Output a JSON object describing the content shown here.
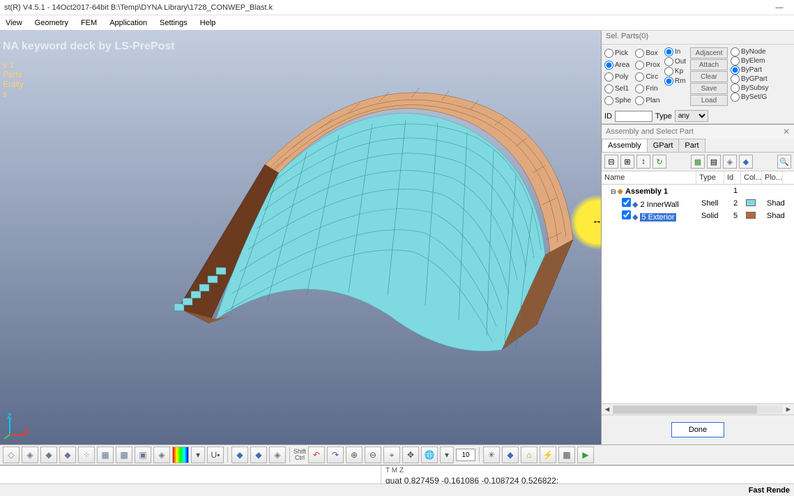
{
  "title": "st(R) V4.5.1 - 14Oct2017-64bit B:\\Temp\\DYNA Library\\1728_CONWEP_Blast.k",
  "menubar": [
    "View",
    "Geometry",
    "FEM",
    "Application",
    "Settings",
    "Help"
  ],
  "viewport": {
    "banner": "NA keyword deck by LS-PrePost",
    "tree": [
      "y 1",
      "Parts",
      "Entity",
      "s"
    ],
    "axis": {
      "z": "Z",
      "x": "X"
    },
    "bg_top": "#c2cde0",
    "bg_bot": "#5c6b8a",
    "mesh": {
      "outer_color": "#e0a97d",
      "outer_edge": "#8a5a38",
      "inner_color": "#7fd9e0",
      "inner_edge": "#2e8a94",
      "side_color": "#6b3a1f",
      "highlight_pos": [
        818,
        236
      ]
    }
  },
  "selparts": {
    "header": "Sel. Parts(0)",
    "col1": [
      [
        "Pick",
        false
      ],
      [
        "Area",
        true
      ],
      [
        "Poly",
        false
      ],
      [
        "Sel1",
        false
      ],
      [
        "Sphe",
        false
      ]
    ],
    "col2": [
      [
        "Box",
        false
      ],
      [
        "Prox",
        false
      ],
      [
        "Circ",
        false
      ],
      [
        "Frin",
        false
      ],
      [
        "Plan",
        false
      ]
    ],
    "col3": [
      [
        "In",
        true
      ],
      [
        "Out",
        false
      ],
      [
        "Kp",
        false
      ],
      [
        "Rm",
        true
      ]
    ],
    "buttons": [
      "Adjacent",
      "Attach",
      "Clear",
      "Save",
      "Load"
    ],
    "bycol": [
      [
        "ByNode",
        false
      ],
      [
        "ByElem",
        false
      ],
      [
        "ByPart",
        true
      ],
      [
        "ByGPart",
        false
      ],
      [
        "BySubsy",
        false
      ],
      [
        "BySet/G",
        false
      ]
    ],
    "id_label": "ID",
    "id_value": "",
    "type_label": "Type",
    "type_value": "any"
  },
  "asm": {
    "title": "Assembly and Select Part",
    "tabs": [
      "Assembly",
      "GPart",
      "Part"
    ],
    "active_tab": 0,
    "columns": [
      [
        "Name",
        136
      ],
      [
        "Type",
        40
      ],
      [
        "Id",
        24
      ],
      [
        "Col...",
        30
      ],
      [
        "Plo...",
        30
      ]
    ],
    "rows": [
      {
        "indent": 0,
        "expander": "⊟",
        "icon": "assembly",
        "name": "Assembly 1",
        "bold": true,
        "type": "",
        "id": "1",
        "color": null,
        "plot": ""
      },
      {
        "indent": 1,
        "check": true,
        "icon": "part",
        "name": "2 InnerWall",
        "type": "Shell",
        "id": "2",
        "color": "#7fd9e0",
        "plot": "Shad"
      },
      {
        "indent": 1,
        "check": true,
        "icon": "part",
        "name": "5 Exterior",
        "type": "Solid",
        "id": "5",
        "color": "#b96a3a",
        "plot": "Shad",
        "selected": true
      }
    ],
    "done": "Done"
  },
  "bottom_toolbar": {
    "group1_count": 9,
    "angle_value": "10",
    "shift_label": "Shift\nCtrl"
  },
  "quat_label": "T M Z",
  "quat": "quat 0.827459 -0.161086 -0.108724 0.526822;",
  "status": "Fast Rende"
}
